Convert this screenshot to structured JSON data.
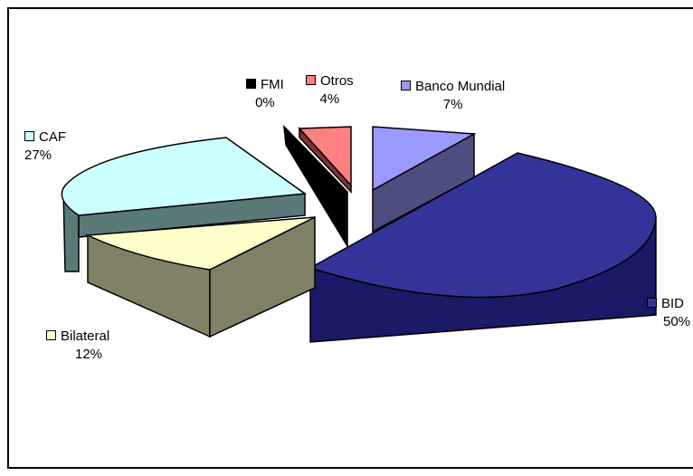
{
  "chart_data": {
    "type": "pie",
    "title": "",
    "slices": [
      {
        "label": "BID",
        "pct_label": "50%",
        "value": 50,
        "color": "#333399"
      },
      {
        "label": "Bilateral",
        "pct_label": "12%",
        "value": 12,
        "color": "#ffffcc"
      },
      {
        "label": "CAF",
        "pct_label": "27%",
        "value": 27,
        "color": "#ccffff"
      },
      {
        "label": "FMI",
        "pct_label": "0%",
        "value": 0,
        "color": "#000000"
      },
      {
        "label": "Otros",
        "pct_label": "4%",
        "value": 4,
        "color": "#ff8080"
      },
      {
        "label": "Banco Mundial",
        "pct_label": "7%",
        "value": 7,
        "color": "#9999ff"
      }
    ],
    "exploded": true,
    "three_d": true
  }
}
